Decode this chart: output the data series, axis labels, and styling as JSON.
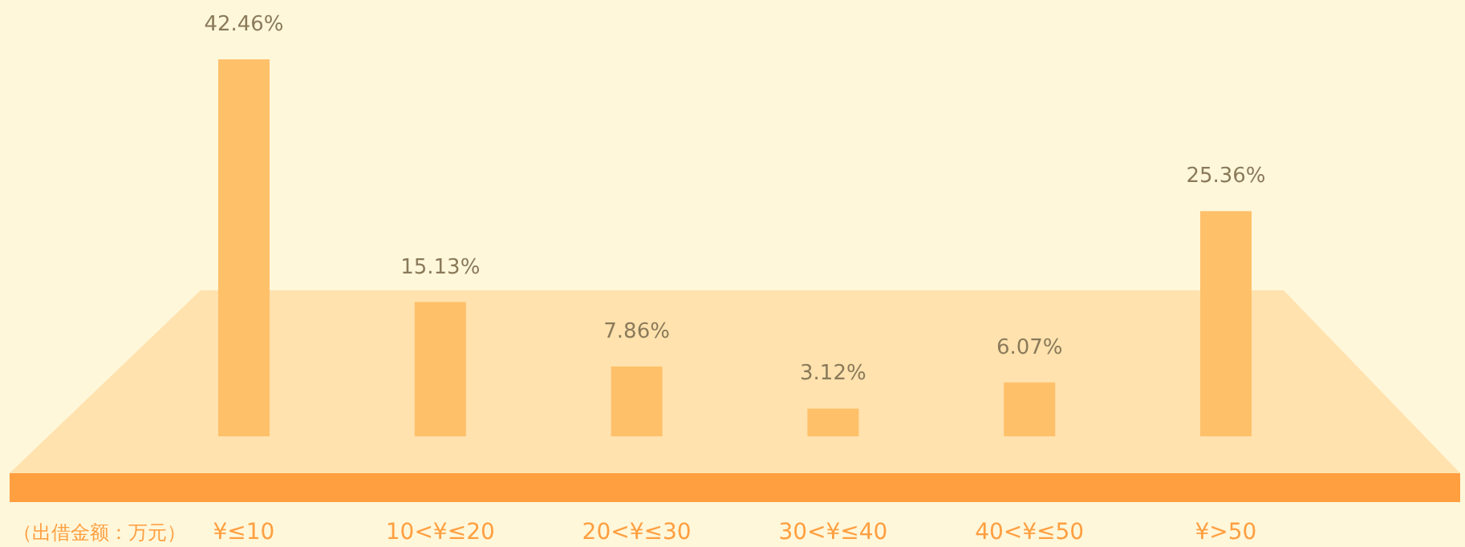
{
  "chart_data": {
    "type": "bar",
    "xlabel": "（出借金额：万元）",
    "categories": [
      "¥≤10",
      "10<¥≤20",
      "20<¥≤30",
      "30<¥≤40",
      "40<¥≤50",
      "¥>50"
    ],
    "values": [
      42.46,
      15.13,
      7.86,
      3.12,
      6.07,
      25.36
    ],
    "value_labels": [
      "42.46%",
      "15.13%",
      "7.86%",
      "3.12%",
      "6.07%",
      "25.36%"
    ],
    "color": "#ffc06a"
  }
}
